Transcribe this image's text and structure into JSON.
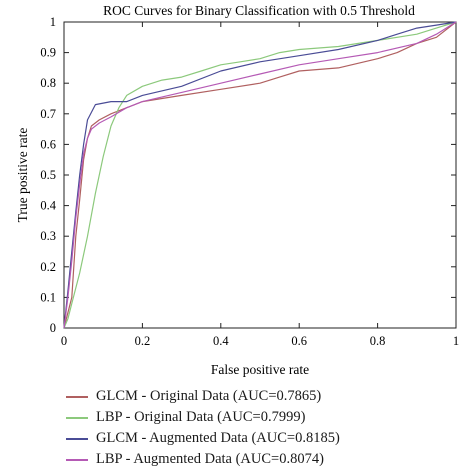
{
  "chart_data": {
    "type": "line",
    "title": "ROC Curves for Binary Classification with 0.5 Threshold",
    "xlabel": "False positive rate",
    "ylabel": "True positive rate",
    "xlim": [
      0,
      1
    ],
    "ylim": [
      0,
      1
    ],
    "xticks": [
      "0",
      "0.2",
      "0.4",
      "0.6",
      "0.8",
      "1"
    ],
    "yticks": [
      "0",
      "0.1",
      "0.2",
      "0.3",
      "0.4",
      "0.5",
      "0.6",
      "0.7",
      "0.8",
      "0.9",
      "1"
    ],
    "grid": false,
    "legend_position": "bottom",
    "series": [
      {
        "name": "GLCM - Original Data (AUC=0.7865)",
        "color": "#b06060",
        "x": [
          0,
          0.01,
          0.02,
          0.025,
          0.03,
          0.04,
          0.05,
          0.06,
          0.07,
          0.09,
          0.12,
          0.16,
          0.2,
          0.3,
          0.4,
          0.5,
          0.55,
          0.6,
          0.7,
          0.8,
          0.85,
          0.9,
          0.95,
          1.0
        ],
        "y": [
          0,
          0.05,
          0.1,
          0.2,
          0.3,
          0.42,
          0.55,
          0.62,
          0.66,
          0.68,
          0.7,
          0.72,
          0.74,
          0.76,
          0.78,
          0.8,
          0.82,
          0.84,
          0.85,
          0.88,
          0.9,
          0.93,
          0.95,
          1.0
        ]
      },
      {
        "name": "LBP - Original Data (AUC=0.7999)",
        "color": "#8cc97c",
        "x": [
          0,
          0.01,
          0.02,
          0.04,
          0.06,
          0.08,
          0.1,
          0.12,
          0.14,
          0.16,
          0.2,
          0.25,
          0.3,
          0.35,
          0.4,
          0.45,
          0.5,
          0.55,
          0.6,
          0.7,
          0.8,
          0.9,
          0.95,
          1.0
        ],
        "y": [
          0,
          0.03,
          0.08,
          0.18,
          0.3,
          0.44,
          0.56,
          0.66,
          0.72,
          0.76,
          0.79,
          0.81,
          0.82,
          0.84,
          0.86,
          0.87,
          0.88,
          0.9,
          0.91,
          0.92,
          0.94,
          0.96,
          0.98,
          1.0
        ]
      },
      {
        "name": "GLCM - Augmented Data (AUC=0.8185)",
        "color": "#4a4c96",
        "x": [
          0,
          0.01,
          0.02,
          0.03,
          0.04,
          0.05,
          0.06,
          0.08,
          0.12,
          0.16,
          0.2,
          0.3,
          0.4,
          0.5,
          0.6,
          0.7,
          0.8,
          0.85,
          0.9,
          0.95,
          1.0
        ],
        "y": [
          0,
          0.12,
          0.25,
          0.38,
          0.5,
          0.6,
          0.68,
          0.73,
          0.74,
          0.74,
          0.76,
          0.79,
          0.84,
          0.87,
          0.89,
          0.91,
          0.94,
          0.96,
          0.98,
          0.99,
          1.0
        ]
      },
      {
        "name": "LBP - Augmented Data (AUC=0.8074)",
        "color": "#b55ab5",
        "x": [
          0,
          0.01,
          0.02,
          0.03,
          0.04,
          0.05,
          0.06,
          0.07,
          0.09,
          0.12,
          0.16,
          0.2,
          0.3,
          0.4,
          0.5,
          0.6,
          0.7,
          0.8,
          0.9,
          0.95,
          1.0
        ],
        "y": [
          0,
          0.1,
          0.22,
          0.36,
          0.47,
          0.57,
          0.62,
          0.65,
          0.67,
          0.69,
          0.72,
          0.74,
          0.77,
          0.8,
          0.83,
          0.86,
          0.88,
          0.9,
          0.93,
          0.96,
          1.0
        ]
      }
    ]
  }
}
